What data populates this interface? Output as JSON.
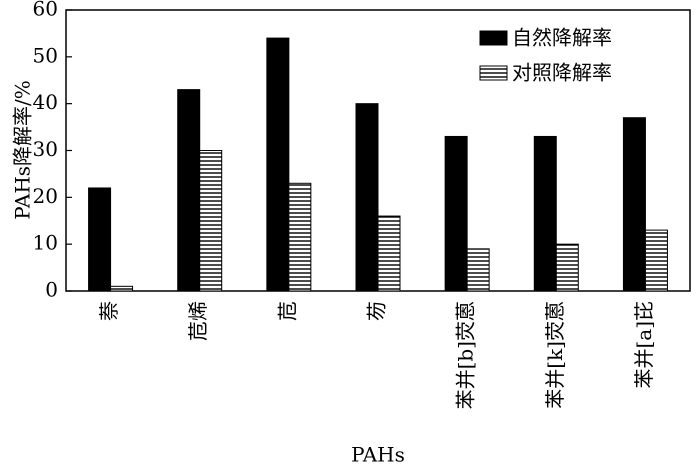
{
  "chart_data": {
    "type": "bar",
    "title": "",
    "xlabel": "PAHs",
    "ylabel": "PAHs降解率/%",
    "ylim": [
      0,
      60
    ],
    "yticks": [
      0,
      10,
      20,
      30,
      40,
      50,
      60
    ],
    "categories": [
      "萘",
      "苊烯",
      "苊",
      "芴",
      "苯并[b]荧蒽",
      "苯并[k]荧蒽",
      "苯并[a]芘"
    ],
    "series": [
      {
        "name": "自然降解率",
        "color": "#000000",
        "fill": "solid",
        "values": [
          22,
          43,
          54,
          40,
          33,
          33,
          37
        ]
      },
      {
        "name": "对照降解率",
        "color": "#000000",
        "fill": "horizontal-hatch",
        "values": [
          1,
          30,
          23,
          16,
          9,
          10,
          13
        ]
      }
    ],
    "legend": "top-right",
    "grid": false
  }
}
